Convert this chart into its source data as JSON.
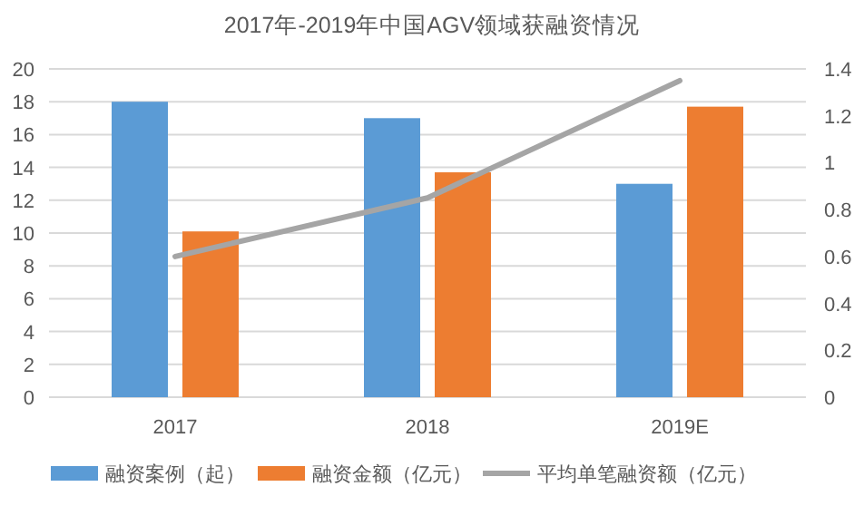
{
  "chart_data": {
    "type": "bar",
    "title": "2017年-2019年中国AGV领域获融资情况",
    "categories": [
      "2017",
      "2018",
      "2019E"
    ],
    "series": [
      {
        "name": "融资案例（起）",
        "color": "#5b9bd5",
        "values": [
          18,
          17,
          13
        ]
      },
      {
        "name": "融资金额（亿元）",
        "color": "#ed7d31",
        "values": [
          10.1,
          13.7,
          17.7
        ]
      },
      {
        "name": "平均单笔融资额（亿元）",
        "type": "line",
        "axis": "y2",
        "color": "#a5a5a5",
        "values": [
          0.6,
          0.85,
          1.35
        ]
      }
    ],
    "ylim": [
      0,
      20
    ],
    "yticks": [
      0,
      2,
      4,
      6,
      8,
      10,
      12,
      14,
      16,
      18,
      20
    ],
    "y2lim": [
      0,
      1.4
    ],
    "y2ticks": [
      0,
      0.2,
      0.4,
      0.6,
      0.8,
      1,
      1.2,
      1.4
    ],
    "grid": "y",
    "legend": "bottom"
  }
}
